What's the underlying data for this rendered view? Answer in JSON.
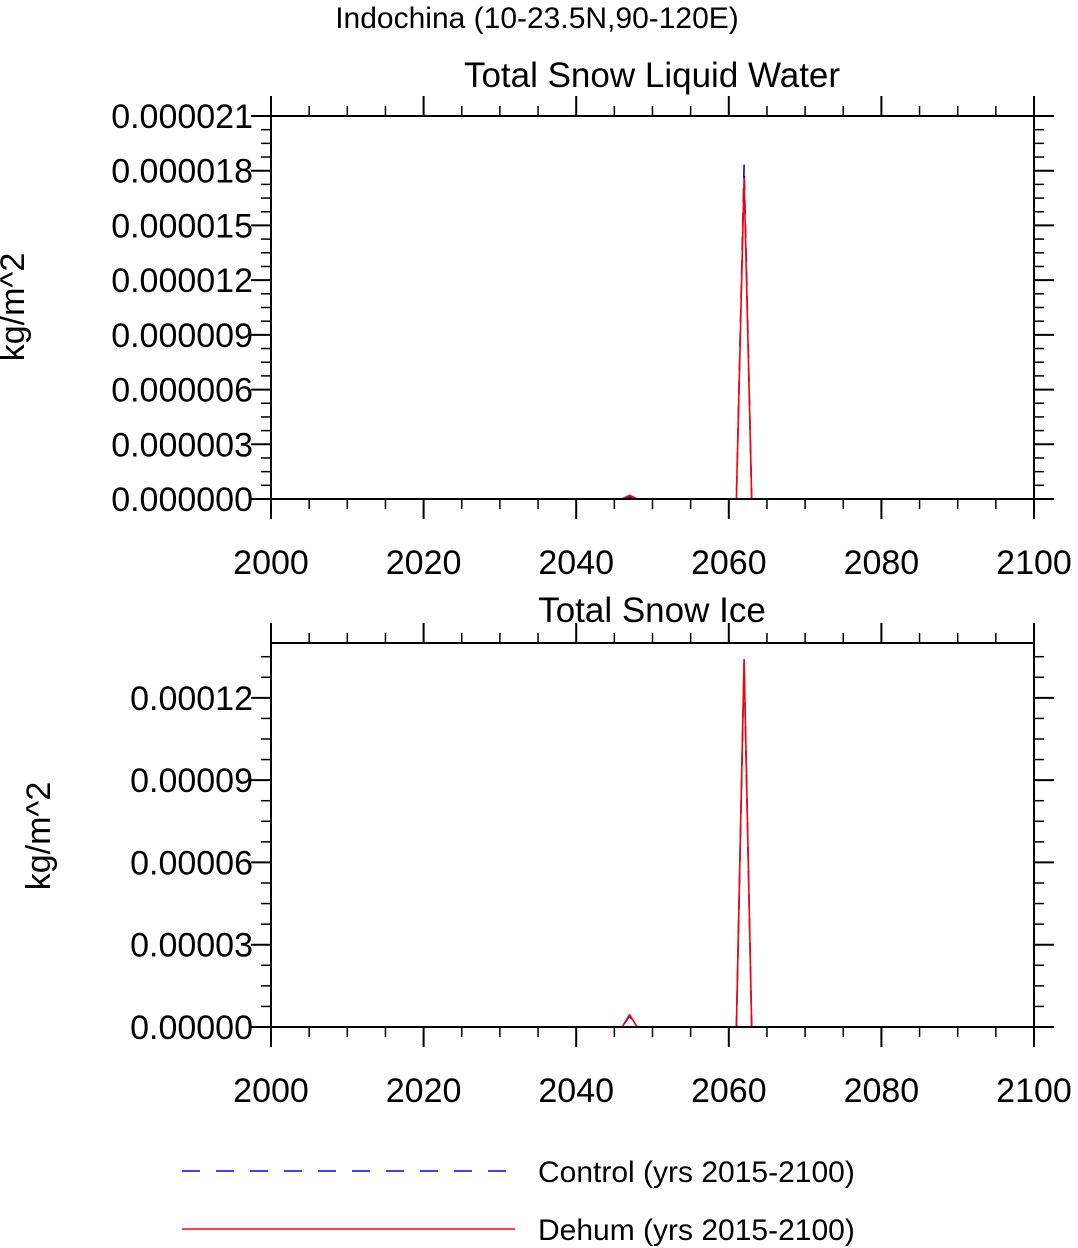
{
  "figure_title": "Indochina (10-23.5N,90-120E)",
  "chart_data": [
    {
      "type": "line",
      "title": "Total Snow Liquid Water",
      "xlabel": "",
      "ylabel": "kg/m^2",
      "xlim": [
        2000,
        2100
      ],
      "ylim": [
        0,
        2.1e-05
      ],
      "x_ticks": [
        2000,
        2020,
        2040,
        2060,
        2080,
        2100
      ],
      "x_tick_labels": [
        "2000",
        "2020",
        "2040",
        "2060",
        "2080",
        "2100"
      ],
      "y_ticks": [
        0,
        3e-06,
        6e-06,
        9e-06,
        1.2e-05,
        1.5e-05,
        1.8e-05,
        2.1e-05
      ],
      "y_tick_labels": [
        "0.000000",
        "0.000003",
        "0.000006",
        "0.000009",
        "0.000012",
        "0.000015",
        "0.000018",
        "0.000021"
      ],
      "series": [
        {
          "name": "Control (yrs 2015-2100)",
          "color": "#0000ff",
          "style": "dashed",
          "x": [
            2015,
            2046,
            2047,
            2048,
            2061,
            2062,
            2063,
            2100
          ],
          "y": [
            0,
            0,
            1e-07,
            0,
            0,
            1.83e-05,
            0,
            0
          ]
        },
        {
          "name": "Dehum (yrs 2015-2100)",
          "color": "#ff0000",
          "style": "solid",
          "x": [
            2015,
            2046,
            2047,
            2048,
            2061,
            2062,
            2063,
            2100
          ],
          "y": [
            0,
            0,
            2e-07,
            0,
            0,
            1.76e-05,
            0,
            0
          ]
        }
      ]
    },
    {
      "type": "line",
      "title": "Total Snow Ice",
      "xlabel": "",
      "ylabel": "kg/m^2",
      "xlim": [
        2000,
        2100
      ],
      "ylim": [
        0,
        0.00014
      ],
      "x_ticks": [
        2000,
        2020,
        2040,
        2060,
        2080,
        2100
      ],
      "x_tick_labels": [
        "2000",
        "2020",
        "2040",
        "2060",
        "2080",
        "2100"
      ],
      "y_ticks": [
        0,
        3e-05,
        6e-05,
        9e-05,
        0.00012
      ],
      "y_tick_labels": [
        "0.00000",
        "0.00003",
        "0.00006",
        "0.00009",
        "0.00012"
      ],
      "series": [
        {
          "name": "Control (yrs 2015-2100)",
          "color": "#0000ff",
          "style": "dashed",
          "x": [
            2015,
            2046,
            2047,
            2048,
            2061,
            2062,
            2063,
            2100
          ],
          "y": [
            0,
            0,
            4e-06,
            0,
            0,
            0.000133,
            0,
            0
          ]
        },
        {
          "name": "Dehum (yrs 2015-2100)",
          "color": "#ff0000",
          "style": "solid",
          "x": [
            2015,
            2046,
            2047,
            2048,
            2061,
            2062,
            2063,
            2100
          ],
          "y": [
            0,
            0,
            4.5e-06,
            0,
            0,
            0.000134,
            0,
            0
          ]
        }
      ]
    }
  ],
  "legend": {
    "placement": "bottom",
    "entries": [
      {
        "label": "Control (yrs 2015-2100)",
        "color": "#0000ff",
        "style": "dashed"
      },
      {
        "label": "Dehum (yrs 2015-2100)",
        "color": "#ff0000",
        "style": "solid"
      }
    ]
  }
}
